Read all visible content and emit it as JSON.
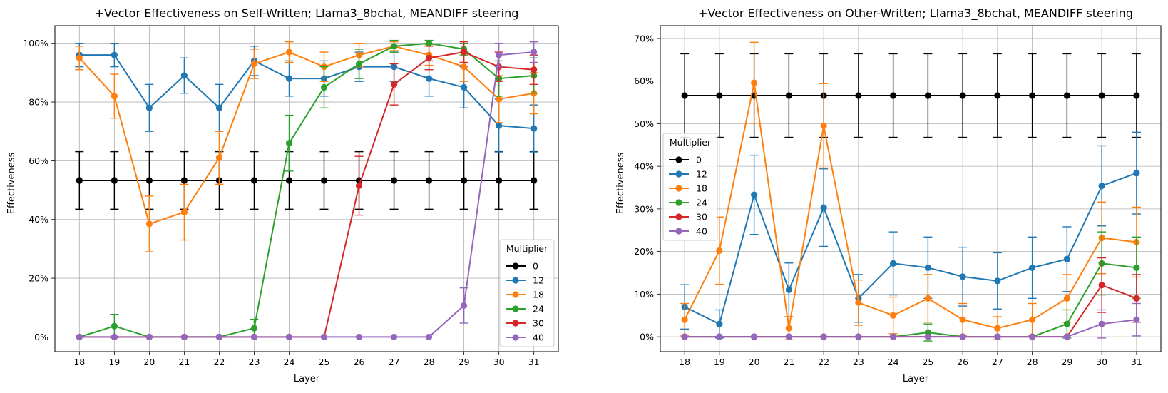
{
  "chart_data": [
    {
      "type": "line",
      "title": "+Vector Effectiveness on Self-Written; Llama3_8bchat, MEANDIFF steering",
      "xlabel": "Layer",
      "ylabel": "Effectiveness",
      "x": [
        18,
        19,
        20,
        21,
        22,
        23,
        24,
        25,
        26,
        27,
        28,
        29,
        30,
        31
      ],
      "ylim": [
        -5,
        106
      ],
      "yticks": [
        0,
        20,
        40,
        60,
        80,
        100
      ],
      "ytick_labels": [
        "0%",
        "20%",
        "40%",
        "60%",
        "80%",
        "100%"
      ],
      "grid": true,
      "legend": {
        "title": "Multiplier",
        "placement": "lower-right"
      },
      "series": [
        {
          "name": "0",
          "color": "#000000",
          "values": [
            53.3,
            53.3,
            53.3,
            53.3,
            53.3,
            53.3,
            53.3,
            53.3,
            53.3,
            53.3,
            53.3,
            53.3,
            53.3,
            53.3
          ],
          "errors": [
            9.8,
            9.8,
            9.8,
            9.8,
            9.8,
            9.8,
            9.8,
            9.8,
            9.8,
            9.8,
            9.8,
            9.8,
            9.8,
            9.8
          ]
        },
        {
          "name": "12",
          "color": "#1f77b4",
          "values": [
            96,
            96,
            78,
            89,
            78,
            94,
            88,
            88,
            92,
            92,
            88,
            85,
            72,
            71
          ],
          "errors": [
            4,
            4,
            8,
            6,
            8,
            5,
            6,
            6,
            5,
            5,
            6,
            7,
            9,
            8
          ]
        },
        {
          "name": "18",
          "color": "#ff7f0e",
          "values": [
            95,
            82,
            38.5,
            42.5,
            61,
            93,
            97,
            92,
            96,
            99,
            96,
            92,
            81,
            83
          ],
          "errors": [
            4,
            7.5,
            9.5,
            9.5,
            9,
            5,
            3.5,
            5,
            4,
            1.5,
            3.5,
            5,
            8,
            7
          ]
        },
        {
          "name": "24",
          "color": "#2ca02c",
          "values": [
            0,
            3.7,
            0,
            0,
            0,
            3,
            66,
            85,
            93,
            99,
            100,
            98,
            88,
            89
          ],
          "errors": [
            0,
            4,
            0,
            0,
            0,
            3,
            9.5,
            7,
            5,
            2,
            1,
            2,
            6,
            6
          ]
        },
        {
          "name": "30",
          "color": "#d62728",
          "values": [
            0,
            0,
            0,
            0,
            0,
            0,
            0,
            0,
            51.5,
            86,
            95,
            97,
            92,
            91
          ],
          "errors": [
            0,
            0,
            0,
            0,
            0,
            0,
            0,
            0,
            10,
            7,
            4,
            3.5,
            5,
            5
          ]
        },
        {
          "name": "40",
          "color": "#9467bd",
          "values": [
            0,
            0,
            0,
            0,
            0,
            0,
            0,
            0,
            0,
            0,
            0,
            10.7,
            96,
            97
          ],
          "errors": [
            0,
            0,
            0,
            0,
            0,
            0,
            0,
            0,
            0,
            0,
            0,
            6,
            4,
            3.5
          ]
        }
      ]
    },
    {
      "type": "line",
      "title": "+Vector Effectiveness on Other-Written; Llama3_8bchat, MEANDIFF steering",
      "xlabel": "Layer",
      "ylabel": "Effectiveness",
      "x": [
        18,
        19,
        20,
        21,
        22,
        23,
        24,
        25,
        26,
        27,
        28,
        29,
        30,
        31
      ],
      "ylim": [
        -3.5,
        73
      ],
      "yticks": [
        0,
        10,
        20,
        30,
        40,
        50,
        60,
        70
      ],
      "ytick_labels": [
        "0%",
        "10%",
        "20%",
        "30%",
        "40%",
        "50%",
        "60%",
        "70%"
      ],
      "grid": true,
      "legend": {
        "title": "Multiplier",
        "placement": "center-left"
      },
      "series": [
        {
          "name": "0",
          "color": "#000000",
          "values": [
            56.6,
            56.6,
            56.6,
            56.6,
            56.6,
            56.6,
            56.6,
            56.6,
            56.6,
            56.6,
            56.6,
            56.6,
            56.6,
            56.6
          ],
          "errors": [
            9.8,
            9.8,
            9.8,
            9.8,
            9.8,
            9.8,
            9.8,
            9.8,
            9.8,
            9.8,
            9.8,
            9.8,
            9.8,
            9.8
          ]
        },
        {
          "name": "12",
          "color": "#1f77b4",
          "values": [
            7,
            3,
            33.3,
            11,
            30.3,
            9,
            17.2,
            16.2,
            14.1,
            13.1,
            16.2,
            18.2,
            35.4,
            38.4
          ],
          "errors": [
            5.2,
            3.3,
            9.3,
            6.3,
            9.1,
            5.6,
            7.4,
            7.2,
            6.9,
            6.6,
            7.2,
            7.6,
            9.4,
            9.6
          ]
        },
        {
          "name": "18",
          "color": "#ff7f0e",
          "values": [
            4,
            20.2,
            59.6,
            2,
            49.5,
            8,
            5,
            9,
            4,
            2,
            4,
            9,
            23.2,
            22.2
          ],
          "errors": [
            3.8,
            7.9,
            9.5,
            2.7,
            9.9,
            5.3,
            4.3,
            5.6,
            3.8,
            2.7,
            3.8,
            5.6,
            8.4,
            8.2
          ]
        },
        {
          "name": "24",
          "color": "#2ca02c",
          "values": [
            0,
            0,
            0,
            0,
            0,
            0,
            0,
            1,
            0,
            0,
            0,
            3,
            17.2,
            16.2
          ],
          "errors": [
            0,
            0,
            0,
            0,
            0,
            0,
            0,
            2,
            0,
            0,
            0,
            3.3,
            7.4,
            7.2
          ]
        },
        {
          "name": "30",
          "color": "#d62728",
          "values": [
            0,
            0,
            0,
            0,
            0,
            0,
            0,
            0,
            0,
            0,
            0,
            0,
            12.1,
            9
          ],
          "errors": [
            0,
            0,
            0,
            0,
            0,
            0,
            0,
            0,
            0,
            0,
            0,
            0,
            6.4,
            5.6
          ]
        },
        {
          "name": "40",
          "color": "#9467bd",
          "values": [
            0,
            0,
            0,
            0,
            0,
            0,
            0,
            0,
            0,
            0,
            0,
            0,
            3,
            4
          ],
          "errors": [
            0,
            0,
            0,
            0,
            0,
            0,
            0,
            0,
            0,
            0,
            0,
            0,
            3.3,
            3.8
          ]
        }
      ]
    }
  ]
}
